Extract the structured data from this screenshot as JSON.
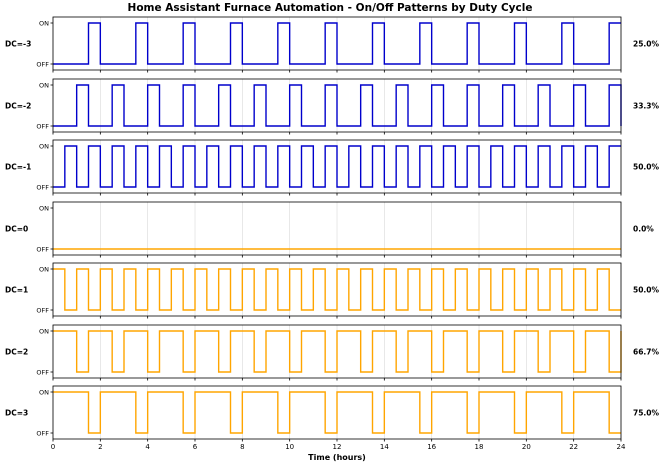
{
  "chart_data": {
    "type": "line",
    "title": "Home Assistant Furnace Automation - On/Off Patterns by Duty Cycle",
    "xlabel": "Time (hours)",
    "xlim": [
      0,
      24
    ],
    "xticks": [
      "0",
      "2",
      "4",
      "6",
      "8",
      "10",
      "12",
      "14",
      "16",
      "18",
      "20",
      "22",
      "24"
    ],
    "yticks": [
      "OFF",
      "ON"
    ],
    "grid": true,
    "colors": {
      "negative": "#0000cc",
      "positive": "#ffa500"
    },
    "series": [
      {
        "name": "DC=-3",
        "duty": "25.0%",
        "color": "#0000cc",
        "period": 2.0,
        "on_fraction": 0.25,
        "start_off": 1.5
      },
      {
        "name": "DC=-2",
        "duty": "33.3%",
        "color": "#0000cc",
        "period": 1.5,
        "on_fraction": 0.3333,
        "start_off": 1.0
      },
      {
        "name": "DC=-1",
        "duty": "50.0%",
        "color": "#0000cc",
        "period": 1.0,
        "on_fraction": 0.5,
        "start_off": 0.5
      },
      {
        "name": "DC=0",
        "duty": "0.0%",
        "color": "#ffa500",
        "period": 24.0,
        "on_fraction": 0.0,
        "start_off": 24.0
      },
      {
        "name": "DC=1",
        "duty": "50.0%",
        "color": "#ffa500",
        "period": 1.0,
        "on_fraction": 0.5,
        "start_on": 0.5
      },
      {
        "name": "DC=2",
        "duty": "66.7%",
        "color": "#ffa500",
        "period": 1.5,
        "on_fraction": 0.6667,
        "start_on": 1.0
      },
      {
        "name": "DC=3",
        "duty": "75.0%",
        "color": "#ffa500",
        "period": 2.0,
        "on_fraction": 0.75,
        "start_on": 1.5
      }
    ]
  }
}
